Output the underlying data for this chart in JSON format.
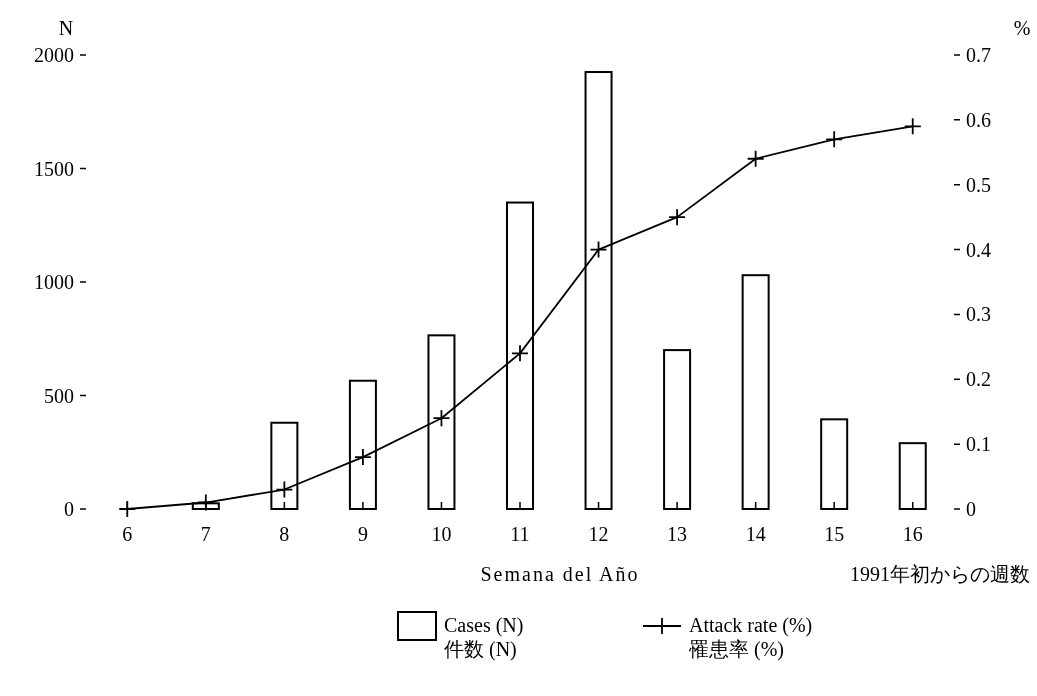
{
  "chart_data": {
    "type": "bar",
    "ylabel": "N",
    "y2label": "%",
    "xlabel": "Semana del Año",
    "annotations": [
      "1991年初からの週数"
    ],
    "categories": [
      "6",
      "7",
      "8",
      "9",
      "10",
      "11",
      "12",
      "13",
      "14",
      "15",
      "16"
    ],
    "series": [
      {
        "name": "Cases (N)\n件数 (N)",
        "color": "#000000",
        "values": [
          0,
          25,
          380,
          565,
          765,
          1350,
          1925,
          700,
          1030,
          395,
          290
        ]
      },
      {
        "name": "Attack rate (%)\n罹患率 (%)",
        "type": "line",
        "axis": "y2",
        "color": "#000000",
        "marker": "cross",
        "line_style": "solid",
        "values": [
          0,
          0.01,
          0.03,
          0.08,
          0.14,
          0.24,
          0.4,
          0.45,
          0.54,
          0.57,
          0.59
        ]
      }
    ],
    "ylim": [
      0,
      2000
    ],
    "yticks": [
      0,
      500,
      1000,
      1500,
      2000
    ],
    "y2lim": [
      0,
      0.7
    ],
    "y2ticks": [
      {
        "value": 0,
        "label": "0"
      },
      {
        "value": 0.1,
        "label": "0.1"
      },
      {
        "value": 0.2,
        "label": "0.2"
      },
      {
        "value": 0.3,
        "label": "0.3"
      },
      {
        "value": 0.4,
        "label": "0.4"
      },
      {
        "value": 0.5,
        "label": "0.5"
      },
      {
        "value": 0.6,
        "label": "0.6"
      },
      {
        "value": 0.7,
        "label": "0.7"
      }
    ],
    "grid": false,
    "legend": "bottom"
  }
}
